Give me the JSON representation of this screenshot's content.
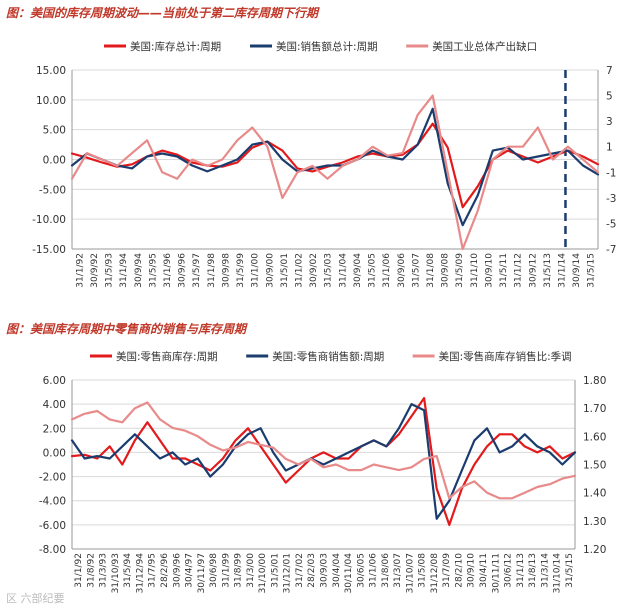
{
  "chart_data": [
    {
      "type": "line",
      "title": "图：美国的库存周期波动——当前处于第二库存周期下行期",
      "ylim_left": [
        -15,
        15
      ],
      "yticks_left": [
        "15.00",
        "10.00",
        "5.00",
        "0.00",
        "-5.00",
        "-10.00",
        "-15.00"
      ],
      "ylim_right": [
        -7,
        7
      ],
      "yticks_right": [
        "7",
        "5",
        "3",
        "1",
        "-1",
        "-3",
        "-5",
        "-7"
      ],
      "xticks": [
        "31/1/92",
        "30/9/92",
        "31/5/93",
        "31/1/94",
        "30/9/94",
        "31/5/95",
        "31/1/96",
        "30/9/96",
        "31/5/97",
        "31/1/98",
        "30/9/98",
        "31/5/99",
        "31/1/00",
        "30/9/00",
        "31/5/01",
        "31/1/02",
        "30/9/02",
        "31/5/03",
        "31/1/04",
        "30/9/04",
        "31/5/05",
        "31/1/06",
        "30/9/06",
        "31/5/07",
        "31/1/08",
        "30/9/08",
        "31/5/09",
        "31/1/10",
        "30/9/10",
        "31/5/11",
        "31/1/12",
        "30/9/12",
        "31/5/13",
        "31/1/14",
        "30/9/14",
        "31/5/15"
      ],
      "vline_at": "31/1/14",
      "series": [
        {
          "name": "美国:库存总计:周期",
          "color": "#e31a1c",
          "axis": "left",
          "values": [
            1,
            0.3,
            -0.5,
            -1.2,
            -0.8,
            0.5,
            1.5,
            0.8,
            -0.5,
            -1,
            -1.2,
            -0.5,
            2,
            3,
            1.5,
            -1.5,
            -2,
            -1.2,
            -0.5,
            0.5,
            1,
            0.5,
            0.8,
            2.5,
            6,
            2,
            -8,
            -4.5,
            0,
            1.5,
            0.5,
            -0.5,
            0.5,
            1.5,
            0.5,
            -0.8
          ]
        },
        {
          "name": "美国:销售额总计:周期",
          "color": "#1a3c6e",
          "axis": "left",
          "values": [
            -1,
            1,
            0,
            -1,
            -1.5,
            0.5,
            1,
            0.5,
            -1,
            -2,
            -1,
            0,
            2.5,
            3,
            0,
            -2,
            -1.5,
            -1,
            -1,
            0,
            1.5,
            0.5,
            0,
            2.5,
            8.5,
            -4,
            -11,
            -6,
            1.5,
            2,
            0,
            0.5,
            1,
            1.5,
            -1,
            -2.5
          ]
        },
        {
          "name": "美国工业总体产出缺口",
          "color": "#e88a8a",
          "axis": "right",
          "values": [
            -1.5,
            0.5,
            0,
            -0.5,
            0.5,
            1.5,
            -1,
            -1.5,
            0,
            -0.5,
            0,
            1.5,
            2.5,
            1,
            -3,
            -1,
            -0.5,
            -1.5,
            -0.5,
            0,
            1,
            0.3,
            0.5,
            3.5,
            5,
            -1,
            -7,
            -4,
            0,
            1,
            1,
            2.5,
            0,
            1,
            0,
            -1
          ]
        }
      ]
    },
    {
      "type": "line",
      "title": "图：美国库存周期中零售商的销售与库存周期",
      "ylim_left": [
        -8,
        6
      ],
      "yticks_left": [
        "6.00",
        "4.00",
        "2.00",
        "0.00",
        "-2.00",
        "-4.00",
        "-6.00",
        "-8.00"
      ],
      "ylim_right": [
        1.2,
        1.8
      ],
      "yticks_right": [
        "1.80",
        "1.70",
        "1.60",
        "1.50",
        "1.40",
        "1.30",
        "1.20"
      ],
      "xticks": [
        "31/1/92",
        "31/8/92",
        "31/3/93",
        "31/10/93",
        "31/5/94",
        "31/12/94",
        "31/7/95",
        "28/2/96",
        "30/9/96",
        "30/4/97",
        "30/11/97",
        "30/6/98",
        "31/1/99",
        "31/8/99",
        "31/3/00",
        "31/10/00",
        "31/5/01",
        "31/12/01",
        "31/7/02",
        "28/2/03",
        "30/9/03",
        "30/4/04",
        "30/11/04",
        "30/6/05",
        "31/1/06",
        "31/8/06",
        "31/3/07",
        "31/10/07",
        "31/5/08",
        "31/12/08",
        "31/7/09",
        "28/2/10",
        "30/9/10",
        "30/4/11",
        "30/11/11",
        "30/6/12",
        "31/1/13",
        "31/8/13",
        "31/3/14",
        "31/10/14",
        "31/5/15"
      ],
      "series": [
        {
          "name": "美国:零售商库存:周期",
          "color": "#e31a1c",
          "axis": "left",
          "values": [
            -0.3,
            -0.2,
            -0.5,
            0.5,
            -1,
            1,
            2.5,
            1,
            -0.5,
            -0.5,
            -1,
            -1.5,
            -0.5,
            1,
            2,
            0.5,
            -1,
            -2.5,
            -1.5,
            -0.5,
            0,
            -0.5,
            -0.5,
            0.5,
            1,
            0.5,
            1.5,
            3,
            4.5,
            -3,
            -6,
            -3,
            -1,
            0.5,
            1.5,
            1.5,
            0.5,
            0,
            0.5,
            -0.5,
            0
          ]
        },
        {
          "name": "美国:零售商销售额:周期",
          "color": "#1a3c6e",
          "axis": "left",
          "values": [
            1,
            -0.5,
            -0.3,
            -0.5,
            0.5,
            1.5,
            0.5,
            -0.5,
            0,
            -1,
            -0.5,
            -2,
            -1,
            0.5,
            1.5,
            2,
            0,
            -1.5,
            -1,
            -0.5,
            -1,
            -0.5,
            0,
            0.5,
            1,
            0.5,
            2,
            4,
            3.5,
            -5.5,
            -4,
            -1.5,
            1,
            2,
            0,
            0.5,
            1.5,
            0.5,
            0,
            -1,
            0
          ]
        },
        {
          "name": "美国:零售商库存销售比:季调",
          "color": "#e88a8a",
          "axis": "right",
          "values": [
            1.66,
            1.68,
            1.69,
            1.66,
            1.65,
            1.7,
            1.72,
            1.66,
            1.63,
            1.62,
            1.6,
            1.57,
            1.55,
            1.56,
            1.58,
            1.57,
            1.56,
            1.52,
            1.5,
            1.52,
            1.49,
            1.5,
            1.48,
            1.48,
            1.5,
            1.49,
            1.48,
            1.49,
            1.52,
            1.53,
            1.38,
            1.42,
            1.44,
            1.4,
            1.38,
            1.38,
            1.4,
            1.42,
            1.43,
            1.45,
            1.46
          ]
        }
      ]
    }
  ],
  "watermark": "区 六部纪要"
}
